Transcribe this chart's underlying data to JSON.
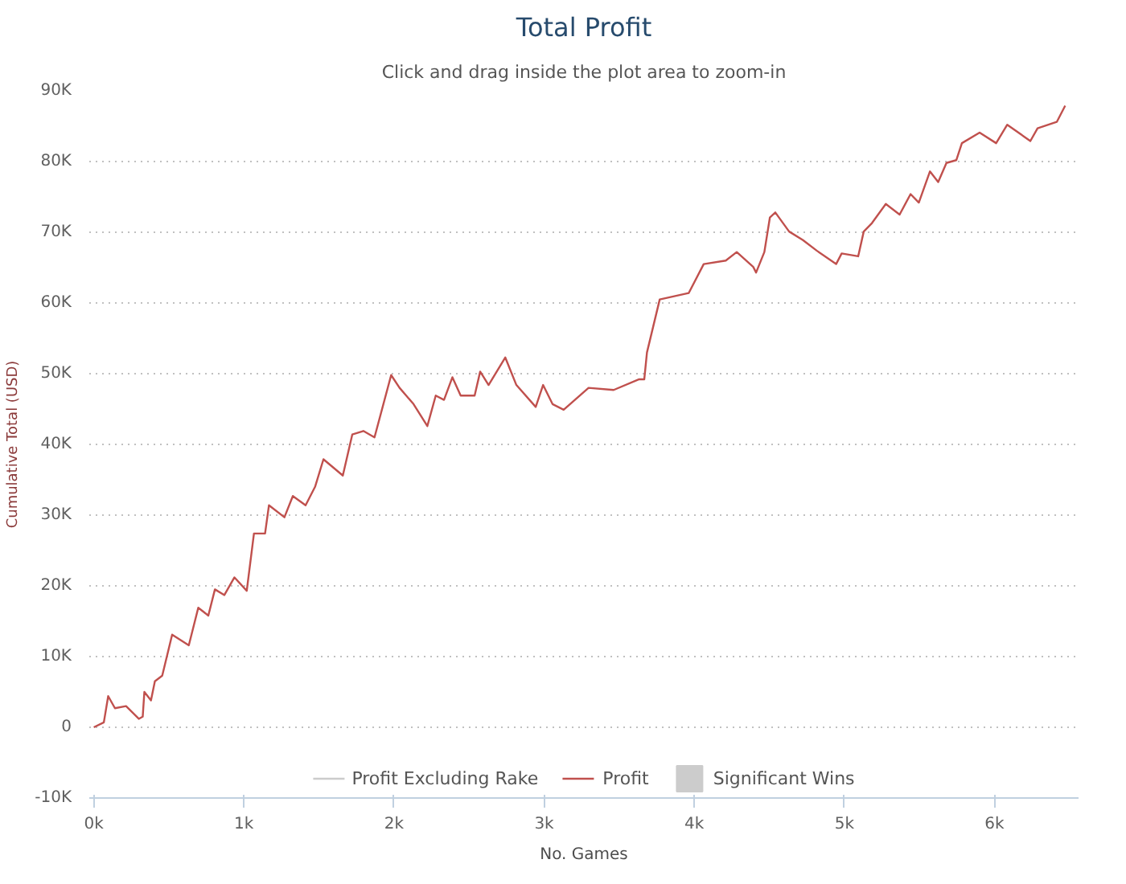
{
  "chart_data": {
    "type": "line",
    "title": "Total Profit",
    "subtitle": "Click and drag inside the plot area to zoom-in",
    "xlabel": "No. Games",
    "ylabel": "Cumulative Total (USD)",
    "xlim": [
      -30,
      6560
    ],
    "ylim": [
      -10000,
      90000
    ],
    "xticks": [
      {
        "value": 0,
        "label": "0k"
      },
      {
        "value": 1000,
        "label": "1k"
      },
      {
        "value": 2000,
        "label": "2k"
      },
      {
        "value": 3000,
        "label": "3k"
      },
      {
        "value": 4000,
        "label": "4k"
      },
      {
        "value": 5000,
        "label": "5k"
      },
      {
        "value": 6000,
        "label": "6k"
      }
    ],
    "yticks": [
      {
        "value": -10000,
        "label": "-10K"
      },
      0,
      {
        "value": 10000,
        "label": "10K"
      },
      {
        "value": 20000,
        "label": "20K"
      },
      {
        "value": 30000,
        "label": "30K"
      },
      {
        "value": 40000,
        "label": "40K"
      },
      {
        "value": 50000,
        "label": "50K"
      },
      {
        "value": 60000,
        "label": "60K"
      },
      {
        "value": 70000,
        "label": "70K"
      },
      {
        "value": 80000,
        "label": "80K"
      },
      {
        "value": 90000,
        "label": "90K"
      }
    ],
    "grid": "y",
    "legend": "bottom",
    "marker": "none",
    "line_style": "solid",
    "series": [
      {
        "name": "Profit Excluding Rake",
        "color": "#cccccc"
      },
      {
        "name": "Profit",
        "color": "#c0504d",
        "x": [
          0,
          67,
          96,
          141,
          215,
          300,
          326,
          337,
          381,
          407,
          456,
          522,
          633,
          696,
          763,
          807,
          870,
          937,
          1019,
          1067,
          1141,
          1167,
          1270,
          1326,
          1411,
          1474,
          1530,
          1659,
          1722,
          1796,
          1870,
          1981,
          2037,
          2130,
          2222,
          2278,
          2333,
          2389,
          2444,
          2537,
          2574,
          2630,
          2741,
          2815,
          2944,
          2993,
          3056,
          3130,
          3296,
          3463,
          3630,
          3667,
          3685,
          3770,
          3963,
          4063,
          4210,
          4283,
          4393,
          4412,
          4467,
          4504,
          4540,
          4632,
          4724,
          4816,
          4945,
          4982,
          5092,
          5129,
          5184,
          5276,
          5368,
          5441,
          5496,
          5570,
          5625,
          5680,
          5746,
          5783,
          5901,
          6011,
          6085,
          6239,
          6287,
          6415,
          6471
        ],
        "values": [
          0,
          700,
          4400,
          2700,
          3000,
          1200,
          1500,
          5000,
          3800,
          6500,
          7300,
          13100,
          11600,
          16900,
          15800,
          19500,
          18700,
          21200,
          19300,
          27400,
          27400,
          31400,
          29700,
          32700,
          31400,
          34000,
          37900,
          35600,
          41400,
          41900,
          41000,
          49800,
          48000,
          45700,
          42600,
          46900,
          46300,
          49500,
          46900,
          46900,
          50300,
          48400,
          52300,
          48400,
          45300,
          48400,
          45700,
          44900,
          48000,
          47700,
          49200,
          49200,
          53000,
          60500,
          61400,
          65500,
          66000,
          67200,
          65100,
          64300,
          67200,
          72100,
          72800,
          70100,
          68900,
          67400,
          65500,
          67000,
          66600,
          70100,
          71300,
          74000,
          72500,
          75400,
          74200,
          78600,
          77100,
          79800,
          80200,
          82600,
          84100,
          82600,
          85200,
          82900,
          84700,
          85600,
          87900
        ]
      },
      {
        "name": "Significant Wins",
        "type": "bar",
        "color": "#cccccc"
      }
    ]
  }
}
